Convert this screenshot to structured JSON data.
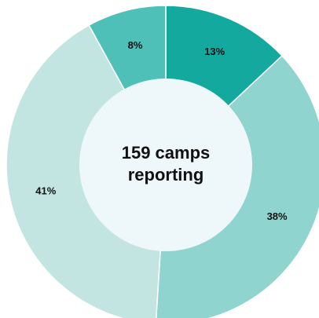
{
  "chart_data": {
    "type": "donut",
    "center_label_lines": [
      "159 camps",
      "reporting"
    ],
    "values": [
      13,
      38,
      41,
      8
    ],
    "value_labels": [
      "13%",
      "38%",
      "41%",
      "8%"
    ],
    "colors": [
      "#13a99f",
      "#90d4cf",
      "#c2e5e1",
      "#4fc0b7"
    ],
    "center_color": "#eef7f9"
  }
}
